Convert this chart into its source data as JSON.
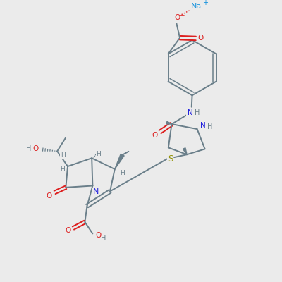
{
  "background_color": "#ebebeb",
  "bond_color": "#6a7f8a",
  "N_color": "#2020dd",
  "O_color": "#dd2020",
  "S_color": "#909000",
  "Na_color": "#1090dd",
  "H_color": "#6a7f8a",
  "figsize": [
    4.0,
    4.0
  ],
  "dpi": 100,
  "xlim": [
    0,
    10
  ],
  "ylim": [
    0,
    10
  ]
}
